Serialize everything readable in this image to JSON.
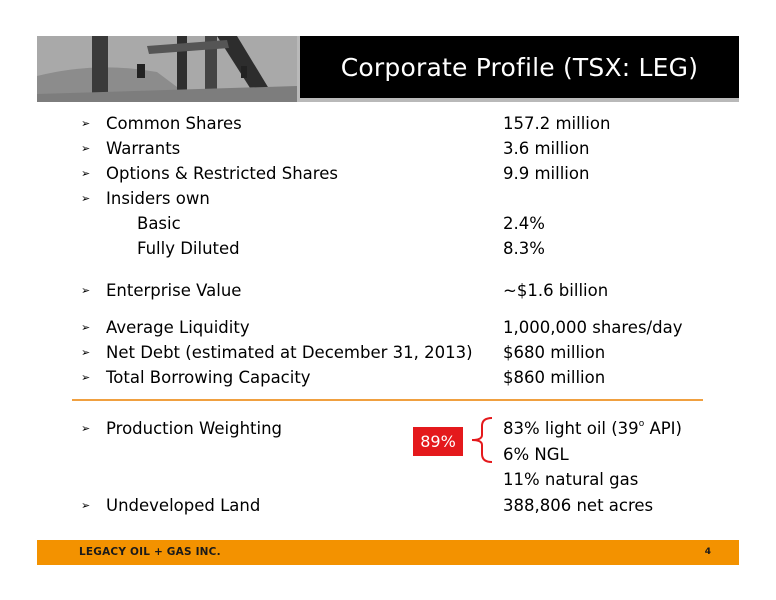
{
  "header": {
    "title": "Corporate Profile (TSX: LEG)"
  },
  "rows": [
    {
      "label": "Common Shares",
      "value": "157.2 million"
    },
    {
      "label": "Warrants",
      "value": "3.6 million"
    },
    {
      "label": "Options & Restricted Shares",
      "value": "9.9 million"
    },
    {
      "label": "Insiders own"
    },
    {
      "label": "Basic",
      "value": "2.4%"
    },
    {
      "label": "Fully Diluted",
      "value": "8.3%"
    },
    {
      "label": "Enterprise Value",
      "value": "~$1.6 billion"
    },
    {
      "label": "Average Liquidity",
      "value": "1,000,000 shares/day"
    },
    {
      "label": "Net Debt (estimated at December 31, 2013)",
      "value": "$680 million"
    },
    {
      "label": "Total Borrowing Capacity",
      "value": "$860 million"
    },
    {
      "label": "Production Weighting",
      "value_main": "83% light oil (39",
      "value_sup": "o",
      "value_tail": " API)"
    },
    {
      "value": "6% NGL"
    },
    {
      "value": "11% natural gas"
    },
    {
      "label": "Undeveloped Land",
      "value": "388,806 net acres"
    }
  ],
  "callout": {
    "text": "89%",
    "color": "#e4191c"
  },
  "bullet_glyph": "➢",
  "footer": {
    "brand": "LEGACY OIL + GAS INC.",
    "page": "4"
  },
  "colors": {
    "accent": "#f39200",
    "rule": "#f0a040",
    "title_bg": "#000000"
  }
}
